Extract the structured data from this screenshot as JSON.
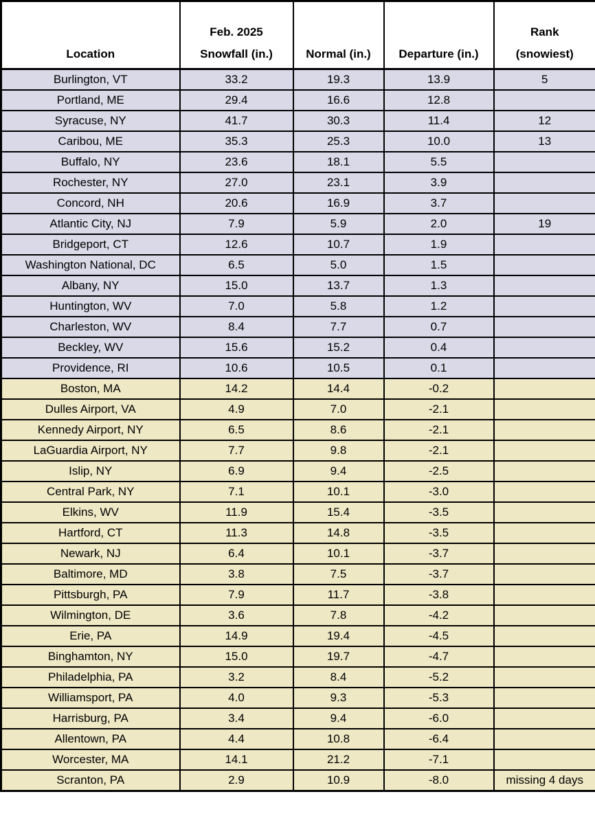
{
  "colors": {
    "above_normal_row": "#d9d9e8",
    "below_normal_row": "#eee8c5",
    "header_bg": "#ffffff",
    "border": "#000000",
    "text": "#000000"
  },
  "chart_data": {
    "type": "table",
    "columns": [
      {
        "key": "location",
        "header_lines": [
          "Location"
        ]
      },
      {
        "key": "snowfall",
        "header_lines": [
          "Feb. 2025",
          "Snowfall (in.)"
        ]
      },
      {
        "key": "normal",
        "header_lines": [
          "Normal (in.)"
        ]
      },
      {
        "key": "departure",
        "header_lines": [
          "Departure (in.)"
        ]
      },
      {
        "key": "rank",
        "header_lines": [
          "Rank",
          "(snowiest)"
        ]
      }
    ],
    "rows": [
      {
        "location": "Burlington, VT",
        "snowfall": "33.2",
        "normal": "19.3",
        "departure": "13.9",
        "rank": "5",
        "tone": "above"
      },
      {
        "location": "Portland, ME",
        "snowfall": "29.4",
        "normal": "16.6",
        "departure": "12.8",
        "rank": "",
        "tone": "above"
      },
      {
        "location": "Syracuse, NY",
        "snowfall": "41.7",
        "normal": "30.3",
        "departure": "11.4",
        "rank": "12",
        "tone": "above"
      },
      {
        "location": "Caribou, ME",
        "snowfall": "35.3",
        "normal": "25.3",
        "departure": "10.0",
        "rank": "13",
        "tone": "above"
      },
      {
        "location": "Buffalo, NY",
        "snowfall": "23.6",
        "normal": "18.1",
        "departure": "5.5",
        "rank": "",
        "tone": "above"
      },
      {
        "location": "Rochester, NY",
        "snowfall": "27.0",
        "normal": "23.1",
        "departure": "3.9",
        "rank": "",
        "tone": "above"
      },
      {
        "location": "Concord, NH",
        "snowfall": "20.6",
        "normal": "16.9",
        "departure": "3.7",
        "rank": "",
        "tone": "above"
      },
      {
        "location": "Atlantic City, NJ",
        "snowfall": "7.9",
        "normal": "5.9",
        "departure": "2.0",
        "rank": "19",
        "tone": "above"
      },
      {
        "location": "Bridgeport, CT",
        "snowfall": "12.6",
        "normal": "10.7",
        "departure": "1.9",
        "rank": "",
        "tone": "above"
      },
      {
        "location": "Washington National, DC",
        "snowfall": "6.5",
        "normal": "5.0",
        "departure": "1.5",
        "rank": "",
        "tone": "above"
      },
      {
        "location": "Albany, NY",
        "snowfall": "15.0",
        "normal": "13.7",
        "departure": "1.3",
        "rank": "",
        "tone": "above"
      },
      {
        "location": "Huntington, WV",
        "snowfall": "7.0",
        "normal": "5.8",
        "departure": "1.2",
        "rank": "",
        "tone": "above"
      },
      {
        "location": "Charleston, WV",
        "snowfall": "8.4",
        "normal": "7.7",
        "departure": "0.7",
        "rank": "",
        "tone": "above"
      },
      {
        "location": "Beckley, WV",
        "snowfall": "15.6",
        "normal": "15.2",
        "departure": "0.4",
        "rank": "",
        "tone": "above"
      },
      {
        "location": "Providence, RI",
        "snowfall": "10.6",
        "normal": "10.5",
        "departure": "0.1",
        "rank": "",
        "tone": "above"
      },
      {
        "location": "Boston, MA",
        "snowfall": "14.2",
        "normal": "14.4",
        "departure": "-0.2",
        "rank": "",
        "tone": "below"
      },
      {
        "location": "Dulles Airport, VA",
        "snowfall": "4.9",
        "normal": "7.0",
        "departure": "-2.1",
        "rank": "",
        "tone": "below"
      },
      {
        "location": "Kennedy Airport, NY",
        "snowfall": "6.5",
        "normal": "8.6",
        "departure": "-2.1",
        "rank": "",
        "tone": "below"
      },
      {
        "location": "LaGuardia Airport, NY",
        "snowfall": "7.7",
        "normal": "9.8",
        "departure": "-2.1",
        "rank": "",
        "tone": "below"
      },
      {
        "location": "Islip, NY",
        "snowfall": "6.9",
        "normal": "9.4",
        "departure": "-2.5",
        "rank": "",
        "tone": "below"
      },
      {
        "location": "Central Park, NY",
        "snowfall": "7.1",
        "normal": "10.1",
        "departure": "-3.0",
        "rank": "",
        "tone": "below"
      },
      {
        "location": "Elkins, WV",
        "snowfall": "11.9",
        "normal": "15.4",
        "departure": "-3.5",
        "rank": "",
        "tone": "below"
      },
      {
        "location": "Hartford, CT",
        "snowfall": "11.3",
        "normal": "14.8",
        "departure": "-3.5",
        "rank": "",
        "tone": "below"
      },
      {
        "location": "Newark, NJ",
        "snowfall": "6.4",
        "normal": "10.1",
        "departure": "-3.7",
        "rank": "",
        "tone": "below"
      },
      {
        "location": "Baltimore, MD",
        "snowfall": "3.8",
        "normal": "7.5",
        "departure": "-3.7",
        "rank": "",
        "tone": "below"
      },
      {
        "location": "Pittsburgh, PA",
        "snowfall": "7.9",
        "normal": "11.7",
        "departure": "-3.8",
        "rank": "",
        "tone": "below"
      },
      {
        "location": "Wilmington, DE",
        "snowfall": "3.6",
        "normal": "7.8",
        "departure": "-4.2",
        "rank": "",
        "tone": "below"
      },
      {
        "location": "Erie, PA",
        "snowfall": "14.9",
        "normal": "19.4",
        "departure": "-4.5",
        "rank": "",
        "tone": "below"
      },
      {
        "location": "Binghamton, NY",
        "snowfall": "15.0",
        "normal": "19.7",
        "departure": "-4.7",
        "rank": "",
        "tone": "below"
      },
      {
        "location": "Philadelphia, PA",
        "snowfall": "3.2",
        "normal": "8.4",
        "departure": "-5.2",
        "rank": "",
        "tone": "below"
      },
      {
        "location": "Williamsport, PA",
        "snowfall": "4.0",
        "normal": "9.3",
        "departure": "-5.3",
        "rank": "",
        "tone": "below"
      },
      {
        "location": "Harrisburg, PA",
        "snowfall": "3.4",
        "normal": "9.4",
        "departure": "-6.0",
        "rank": "",
        "tone": "below"
      },
      {
        "location": "Allentown, PA",
        "snowfall": "4.4",
        "normal": "10.8",
        "departure": "-6.4",
        "rank": "",
        "tone": "below"
      },
      {
        "location": "Worcester, MA",
        "snowfall": "14.1",
        "normal": "21.2",
        "departure": "-7.1",
        "rank": "",
        "tone": "below"
      },
      {
        "location": "Scranton, PA",
        "snowfall": "2.9",
        "normal": "10.9",
        "departure": "-8.0",
        "rank": "missing 4 days",
        "tone": "below"
      }
    ]
  }
}
